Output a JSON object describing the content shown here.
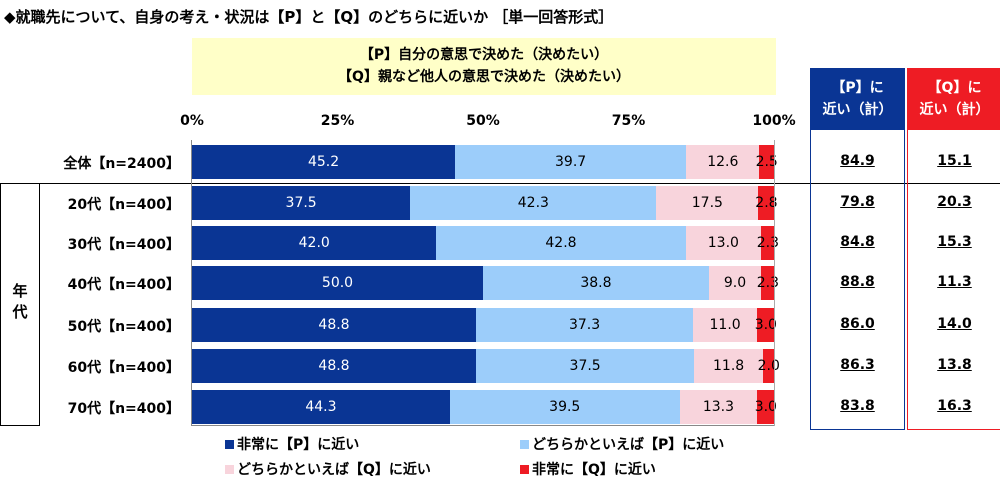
{
  "title": "◆就職先について、自身の考え・状況は【P】と【Q】のどちらに近いか ［単一回答形式］",
  "question": {
    "p": "【P】自分の意思で決めた（決めたい）",
    "q": "【Q】親など他人の意思で決めた（決めたい）"
  },
  "group_label": "年代",
  "totals": {
    "p_header_1": "【P】に",
    "p_header_2": "近い（計）",
    "q_header_1": "【Q】に",
    "q_header_2": "近い（計）"
  },
  "colors": {
    "very_p": "#0a3594",
    "some_p": "#9ccdfa",
    "some_q": "#f8d4dc",
    "very_q": "#ee1c24"
  },
  "chart_data": {
    "type": "bar",
    "stacked": true,
    "orientation": "horizontal",
    "xlim": [
      0,
      100
    ],
    "ticks": [
      "0%",
      "25%",
      "50%",
      "75%",
      "100%"
    ],
    "categories": [
      "全体【n=2400】",
      "20代【n=400】",
      "30代【n=400】",
      "40代【n=400】",
      "50代【n=400】",
      "60代【n=400】",
      "70代【n=400】"
    ],
    "series": [
      {
        "name": "非常に【P】に近い",
        "values": [
          45.2,
          37.5,
          42.0,
          50.0,
          48.8,
          48.8,
          44.3
        ]
      },
      {
        "name": "どちらかといえば【P】に近い",
        "values": [
          39.7,
          42.3,
          42.8,
          38.8,
          37.3,
          37.5,
          39.5
        ]
      },
      {
        "name": "どちらかといえば【Q】に近い",
        "values": [
          12.6,
          17.5,
          13.0,
          9.0,
          11.0,
          11.8,
          13.3
        ]
      },
      {
        "name": "非常に【Q】に近い",
        "values": [
          2.5,
          2.8,
          2.3,
          2.3,
          3.0,
          2.0,
          3.0
        ]
      }
    ],
    "p_total": [
      84.9,
      79.8,
      84.8,
      88.8,
      86.0,
      86.3,
      83.8
    ],
    "q_total": [
      15.1,
      20.3,
      15.3,
      11.3,
      14.0,
      13.8,
      16.3
    ]
  }
}
